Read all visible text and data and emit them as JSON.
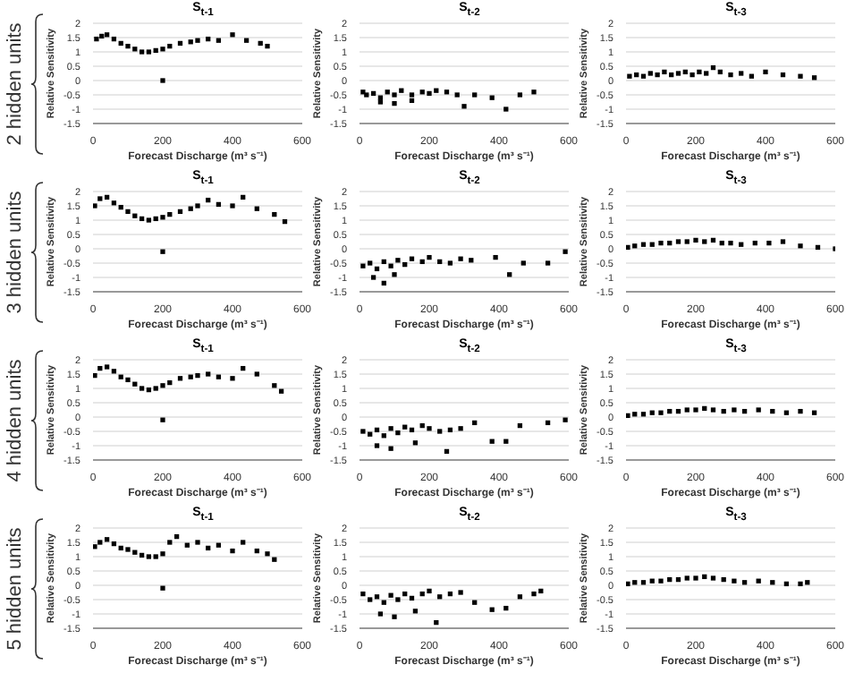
{
  "chart_data": [
    {
      "type": "scatter",
      "title": "S$_{t-1}$",
      "xlabel": "Forecast Discharge (m³ s⁻¹)",
      "ylabel": "Relative Sensitivity",
      "annotations": [
        "2 hidden units"
      ],
      "xlim": [
        0,
        600
      ],
      "ylim": [
        -1.5,
        2
      ],
      "xticks": [
        0,
        200,
        400,
        600
      ],
      "yticks": [
        -1.5,
        -1,
        -0.5,
        0,
        0.5,
        1,
        1.5,
        2
      ],
      "grid": "y",
      "marker": "square",
      "series": [
        {
          "color": "#000000",
          "x": [
            10,
            25,
            40,
            60,
            80,
            100,
            120,
            140,
            160,
            180,
            200,
            220,
            250,
            280,
            300,
            330,
            360,
            400,
            440,
            480,
            500,
            200
          ],
          "values": [
            1.45,
            1.55,
            1.6,
            1.45,
            1.3,
            1.2,
            1.1,
            1.0,
            1.0,
            1.05,
            1.1,
            1.2,
            1.3,
            1.35,
            1.4,
            1.45,
            1.4,
            1.6,
            1.4,
            1.3,
            1.2,
            0
          ]
        }
      ]
    },
    {
      "type": "scatter",
      "title": "S$_{t-2}$",
      "xlabel": "Forecast Discharge (m³ s⁻¹)",
      "ylabel": "Relative Sensitivity",
      "xlim": [
        0,
        600
      ],
      "ylim": [
        -1.5,
        2
      ],
      "xticks": [
        0,
        200,
        400,
        600
      ],
      "yticks": [
        -1.5,
        -1,
        -0.5,
        0,
        0.5,
        1,
        1.5,
        2
      ],
      "grid": "y",
      "marker": "square",
      "series": [
        {
          "color": "#000000",
          "x": [
            10,
            20,
            40,
            60,
            80,
            100,
            120,
            150,
            180,
            200,
            220,
            250,
            280,
            300,
            330,
            380,
            420,
            460,
            500,
            60,
            100,
            150
          ],
          "values": [
            -0.4,
            -0.5,
            -0.45,
            -0.6,
            -0.4,
            -0.5,
            -0.35,
            -0.5,
            -0.4,
            -0.45,
            -0.35,
            -0.4,
            -0.5,
            -0.9,
            -0.5,
            -0.6,
            -1,
            -0.5,
            -0.4,
            -0.75,
            -0.8,
            -0.7
          ]
        }
      ]
    },
    {
      "type": "scatter",
      "title": "S$_{t-3}$",
      "xlabel": "Forecast Discharge (m³ s⁻¹)",
      "ylabel": "Relative Sensitivity",
      "xlim": [
        0,
        600
      ],
      "ylim": [
        -1.5,
        2
      ],
      "xticks": [
        0,
        200,
        400,
        600
      ],
      "yticks": [
        -1.5,
        -1,
        -0.5,
        0,
        0.5,
        1,
        1.5,
        2
      ],
      "grid": "y",
      "marker": "square",
      "series": [
        {
          "color": "#000000",
          "x": [
            10,
            30,
            50,
            70,
            90,
            110,
            130,
            150,
            170,
            190,
            210,
            230,
            250,
            270,
            300,
            330,
            360,
            400,
            450,
            500,
            540
          ],
          "values": [
            0.15,
            0.2,
            0.15,
            0.25,
            0.2,
            0.3,
            0.2,
            0.25,
            0.3,
            0.2,
            0.3,
            0.25,
            0.45,
            0.3,
            0.2,
            0.25,
            0.15,
            0.3,
            0.2,
            0.15,
            0.1
          ]
        }
      ]
    },
    {
      "type": "scatter",
      "title": "S$_{t-1}$",
      "xlabel": "Forecast Discharge (m³ s⁻¹)",
      "ylabel": "Relative Sensitivity",
      "annotations": [
        "3 hidden units"
      ],
      "xlim": [
        0,
        600
      ],
      "ylim": [
        -1.5,
        2
      ],
      "xticks": [
        0,
        200,
        400,
        600
      ],
      "yticks": [
        -1.5,
        -1,
        -0.5,
        0,
        0.5,
        1,
        1.5,
        2
      ],
      "grid": "y",
      "marker": "square",
      "series": [
        {
          "color": "#000000",
          "x": [
            5,
            20,
            40,
            60,
            80,
            100,
            120,
            140,
            160,
            180,
            200,
            220,
            250,
            280,
            300,
            330,
            360,
            400,
            430,
            470,
            520,
            550,
            200
          ],
          "values": [
            1.5,
            1.75,
            1.8,
            1.6,
            1.45,
            1.3,
            1.15,
            1.05,
            1.0,
            1.05,
            1.1,
            1.2,
            1.3,
            1.4,
            1.5,
            1.7,
            1.55,
            1.5,
            1.8,
            1.4,
            1.2,
            0.95,
            -0.1
          ]
        }
      ]
    },
    {
      "type": "scatter",
      "title": "S$_{t-2}$",
      "xlabel": "Forecast Discharge (m³ s⁻¹)",
      "ylabel": "Relative Sensitivity",
      "xlim": [
        0,
        600
      ],
      "ylim": [
        -1.5,
        2
      ],
      "xticks": [
        0,
        200,
        400,
        600
      ],
      "yticks": [
        -1.5,
        -1,
        -0.5,
        0,
        0.5,
        1,
        1.5,
        2
      ],
      "grid": "y",
      "marker": "square",
      "series": [
        {
          "color": "#000000",
          "x": [
            10,
            30,
            50,
            70,
            90,
            110,
            130,
            150,
            180,
            200,
            230,
            260,
            290,
            320,
            390,
            430,
            470,
            540,
            590,
            40,
            70,
            100
          ],
          "values": [
            -0.6,
            -0.5,
            -0.7,
            -0.45,
            -0.6,
            -0.4,
            -0.55,
            -0.35,
            -0.45,
            -0.3,
            -0.45,
            -0.5,
            -0.35,
            -0.4,
            -0.3,
            -0.9,
            -0.5,
            -0.5,
            -0.1,
            -1.0,
            -1.2,
            -0.9
          ]
        }
      ]
    },
    {
      "type": "scatter",
      "title": "S$_{t-3}$",
      "xlabel": "Forecast Discharge (m³ s⁻¹)",
      "ylabel": "Relative Sensitivity",
      "xlim": [
        0,
        600
      ],
      "ylim": [
        -1.5,
        2
      ],
      "xticks": [
        0,
        200,
        400,
        600
      ],
      "yticks": [
        -1.5,
        -1,
        -0.5,
        0,
        0.5,
        1,
        1.5,
        2
      ],
      "grid": "y",
      "marker": "square",
      "series": [
        {
          "color": "#000000",
          "x": [
            5,
            25,
            50,
            75,
            100,
            125,
            150,
            175,
            200,
            225,
            250,
            275,
            300,
            330,
            370,
            410,
            450,
            500,
            550,
            600
          ],
          "values": [
            0.05,
            0.1,
            0.15,
            0.15,
            0.2,
            0.2,
            0.25,
            0.25,
            0.3,
            0.25,
            0.3,
            0.2,
            0.2,
            0.15,
            0.2,
            0.2,
            0.25,
            0.1,
            0.05,
            0
          ]
        }
      ]
    },
    {
      "type": "scatter",
      "title": "S$_{t-1}$",
      "xlabel": "Forecast Discharge (m³ s⁻¹)",
      "ylabel": "Relative Sensitivity",
      "annotations": [
        "4 hidden units"
      ],
      "xlim": [
        0,
        600
      ],
      "ylim": [
        -1.5,
        2
      ],
      "xticks": [
        0,
        200,
        400,
        600
      ],
      "yticks": [
        -1.5,
        -1,
        -0.5,
        0,
        0.5,
        1,
        1.5,
        2
      ],
      "grid": "y",
      "marker": "square",
      "series": [
        {
          "color": "#000000",
          "x": [
            5,
            20,
            40,
            60,
            80,
            100,
            120,
            140,
            160,
            180,
            200,
            220,
            250,
            280,
            300,
            330,
            360,
            400,
            430,
            470,
            520,
            540,
            200
          ],
          "values": [
            1.45,
            1.7,
            1.75,
            1.6,
            1.4,
            1.3,
            1.15,
            1.0,
            0.95,
            1.0,
            1.1,
            1.2,
            1.35,
            1.4,
            1.45,
            1.5,
            1.4,
            1.35,
            1.7,
            1.5,
            1.1,
            0.9,
            -0.1
          ]
        }
      ]
    },
    {
      "type": "scatter",
      "title": "S$_{t-2}$",
      "xlabel": "Forecast Discharge (m³ s⁻¹)",
      "ylabel": "Relative Sensitivity",
      "xlim": [
        0,
        600
      ],
      "ylim": [
        -1.5,
        2
      ],
      "xticks": [
        0,
        200,
        400,
        600
      ],
      "yticks": [
        -1.5,
        -1,
        -0.5,
        0,
        0.5,
        1,
        1.5,
        2
      ],
      "grid": "y",
      "marker": "square",
      "series": [
        {
          "color": "#000000",
          "x": [
            10,
            30,
            50,
            70,
            90,
            110,
            130,
            150,
            180,
            200,
            230,
            260,
            290,
            330,
            380,
            420,
            460,
            540,
            590,
            50,
            90,
            160,
            250
          ],
          "values": [
            -0.5,
            -0.6,
            -0.45,
            -0.65,
            -0.4,
            -0.55,
            -0.35,
            -0.45,
            -0.3,
            -0.4,
            -0.5,
            -0.45,
            -0.4,
            -0.2,
            -0.85,
            -0.85,
            -0.3,
            -0.2,
            -0.1,
            -1.0,
            -1.1,
            -0.9,
            -1.2
          ]
        }
      ]
    },
    {
      "type": "scatter",
      "title": "S$_{t-3}$",
      "xlabel": "Forecast Discharge (m³ s⁻¹)",
      "ylabel": "Relative Sensitivity",
      "xlim": [
        0,
        600
      ],
      "ylim": [
        -1.5,
        2
      ],
      "xticks": [
        0,
        200,
        400,
        600
      ],
      "yticks": [
        -1.5,
        -1,
        -0.5,
        0,
        0.5,
        1,
        1.5,
        2
      ],
      "grid": "y",
      "marker": "square",
      "series": [
        {
          "color": "#000000",
          "x": [
            5,
            25,
            50,
            75,
            100,
            125,
            150,
            175,
            200,
            225,
            250,
            280,
            310,
            340,
            380,
            420,
            460,
            500,
            540
          ],
          "values": [
            0.05,
            0.1,
            0.1,
            0.15,
            0.15,
            0.2,
            0.2,
            0.25,
            0.25,
            0.3,
            0.25,
            0.2,
            0.25,
            0.2,
            0.25,
            0.2,
            0.15,
            0.2,
            0.15
          ]
        }
      ]
    },
    {
      "type": "scatter",
      "title": "S$_{t-1}$",
      "xlabel": "Forecast Discharge (m³ s⁻¹)",
      "ylabel": "Relative Sensitivity",
      "annotations": [
        "5 hidden units"
      ],
      "xlim": [
        0,
        600
      ],
      "ylim": [
        -1.5,
        2
      ],
      "xticks": [
        0,
        200,
        400,
        600
      ],
      "yticks": [
        -1.5,
        -1,
        -0.5,
        0,
        0.5,
        1,
        1.5,
        2
      ],
      "grid": "y",
      "marker": "square",
      "series": [
        {
          "color": "#000000",
          "x": [
            5,
            20,
            40,
            60,
            80,
            100,
            120,
            140,
            160,
            180,
            200,
            220,
            240,
            270,
            300,
            330,
            360,
            400,
            430,
            470,
            500,
            520,
            200
          ],
          "values": [
            1.35,
            1.5,
            1.6,
            1.45,
            1.3,
            1.25,
            1.15,
            1.05,
            1.0,
            1.0,
            1.1,
            1.5,
            1.7,
            1.4,
            1.5,
            1.3,
            1.4,
            1.2,
            1.5,
            1.2,
            1.1,
            0.9,
            -0.1
          ]
        }
      ]
    },
    {
      "type": "scatter",
      "title": "S$_{t-2}$",
      "xlabel": "Forecast Discharge (m³ s⁻¹)",
      "ylabel": "Relative Sensitivity",
      "xlim": [
        0,
        600
      ],
      "ylim": [
        -1.5,
        2
      ],
      "xticks": [
        0,
        200,
        400,
        600
      ],
      "yticks": [
        -1.5,
        -1,
        -0.5,
        0,
        0.5,
        1,
        1.5,
        2
      ],
      "grid": "y",
      "marker": "square",
      "series": [
        {
          "color": "#000000",
          "x": [
            10,
            30,
            50,
            70,
            90,
            110,
            130,
            150,
            180,
            200,
            230,
            260,
            290,
            330,
            380,
            420,
            460,
            500,
            520,
            60,
            100,
            160,
            220
          ],
          "values": [
            -0.3,
            -0.5,
            -0.4,
            -0.6,
            -0.35,
            -0.5,
            -0.3,
            -0.45,
            -0.3,
            -0.2,
            -0.4,
            -0.3,
            -0.25,
            -0.6,
            -0.85,
            -0.8,
            -0.4,
            -0.3,
            -0.2,
            -1.0,
            -1.1,
            -0.9,
            -1.3
          ]
        }
      ]
    },
    {
      "type": "scatter",
      "title": "S$_{t-3}$",
      "xlabel": "Forecast Discharge (m³ s⁻¹)",
      "ylabel": "Relative Sensitivity",
      "xlim": [
        0,
        600
      ],
      "ylim": [
        -1.5,
        2
      ],
      "xticks": [
        0,
        200,
        400,
        600
      ],
      "yticks": [
        -1.5,
        -1,
        -0.5,
        0,
        0.5,
        1,
        1.5,
        2
      ],
      "grid": "y",
      "marker": "square",
      "series": [
        {
          "color": "#000000",
          "x": [
            5,
            25,
            50,
            75,
            100,
            125,
            150,
            175,
            200,
            225,
            250,
            280,
            310,
            340,
            380,
            420,
            460,
            500,
            520
          ],
          "values": [
            0.05,
            0.1,
            0.1,
            0.15,
            0.15,
            0.2,
            0.2,
            0.25,
            0.25,
            0.3,
            0.25,
            0.2,
            0.15,
            0.1,
            0.15,
            0.1,
            0.05,
            0.05,
            0.1
          ]
        }
      ]
    }
  ]
}
